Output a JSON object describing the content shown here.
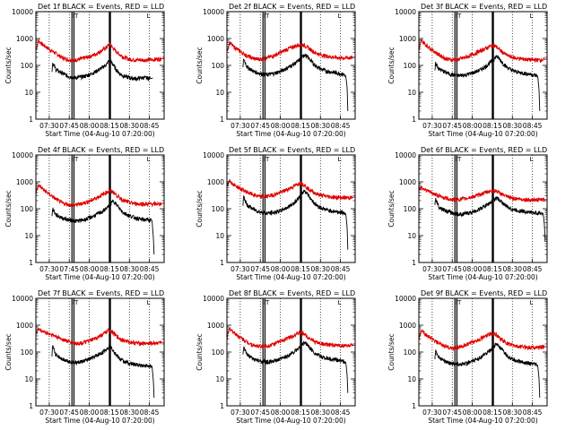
{
  "figure": {
    "xlabel": "Start Time (04-Aug-10 07:20:00)",
    "ylabel": "Counts/sec",
    "panel_title_suffix": " BLACK = Events, RED = LLD",
    "xticks": [
      "07:30",
      "07:45",
      "08:00",
      "08:15",
      "08:30",
      "08:45"
    ],
    "yticks": [
      "1",
      "10",
      "100",
      "1000",
      "10000"
    ]
  },
  "colors": {
    "events": "#000000",
    "lld": "#e00000",
    "background": "#ffffff"
  },
  "chart_data": [
    {
      "type": "line",
      "detector": "Det 1f",
      "title": "Det 1f BLACK = Events, RED = LLD",
      "xlabel": "Start Time (04-Aug-10 07:20:00)",
      "ylabel": "Counts/sec",
      "x_unit": "minutes after 07:20:00",
      "xlim": [
        0,
        96
      ],
      "ylim": [
        1,
        10000
      ],
      "ylog": true,
      "series": [
        {
          "name": "RED = LLD",
          "x": [
            0,
            2,
            5,
            10,
            15,
            20,
            25,
            30,
            35,
            40,
            45,
            50,
            53,
            55,
            58,
            60,
            63,
            66,
            70,
            75,
            80,
            85,
            90,
            96
          ],
          "values": [
            380,
            820,
            600,
            400,
            280,
            190,
            160,
            160,
            180,
            210,
            270,
            380,
            480,
            620,
            430,
            330,
            250,
            200,
            170,
            160,
            160,
            160,
            170,
            180
          ]
        },
        {
          "name": "BLACK = Events",
          "x": [
            12,
            12.5,
            15,
            20,
            25,
            30,
            35,
            40,
            45,
            50,
            53,
            55,
            58,
            60,
            63,
            66,
            70,
            75,
            80,
            83,
            86,
            87,
            87.5
          ],
          "values": [
            55,
            130,
            70,
            50,
            38,
            35,
            38,
            45,
            60,
            85,
            110,
            160,
            105,
            70,
            48,
            40,
            35,
            32,
            35,
            34,
            33,
            33,
            34
          ]
        }
      ]
    },
    {
      "type": "line",
      "detector": "Det 2f",
      "title": "Det 2f BLACK = Events, RED = LLD",
      "xlabel": "Start Time (04-Aug-10 07:20:00)",
      "ylabel": "Counts/sec",
      "x_unit": "minutes after 07:20:00",
      "xlim": [
        0,
        96
      ],
      "ylim": [
        1,
        10000
      ],
      "ylog": true,
      "series": [
        {
          "name": "RED = LLD",
          "x": [
            0,
            2,
            5,
            10,
            15,
            20,
            25,
            30,
            35,
            40,
            45,
            50,
            55,
            58,
            60,
            63,
            66,
            70,
            75,
            80,
            85,
            90,
            96
          ],
          "values": [
            350,
            700,
            500,
            330,
            230,
            180,
            170,
            190,
            230,
            300,
            400,
            500,
            620,
            560,
            480,
            380,
            300,
            250,
            220,
            200,
            190,
            190,
            200
          ]
        },
        {
          "name": "BLACK = Events",
          "x": [
            12,
            12.5,
            15,
            20,
            25,
            30,
            35,
            40,
            45,
            50,
            55,
            58,
            60,
            63,
            66,
            70,
            75,
            80,
            85,
            88,
            89,
            90,
            90.5
          ],
          "values": [
            80,
            180,
            90,
            60,
            50,
            45,
            50,
            60,
            80,
            110,
            170,
            260,
            210,
            150,
            100,
            75,
            60,
            55,
            50,
            45,
            40,
            15,
            2
          ]
        }
      ]
    },
    {
      "type": "line",
      "detector": "Det 3f",
      "title": "Det 3f BLACK = Events, RED = LLD",
      "xlabel": "Start Time (04-Aug-10 07:20:00)",
      "ylabel": "Counts/sec",
      "x_unit": "minutes after 07:20:00",
      "xlim": [
        0,
        96
      ],
      "ylim": [
        1,
        10000
      ],
      "ylog": true,
      "series": [
        {
          "name": "RED = LLD",
          "x": [
            0,
            2,
            5,
            10,
            15,
            20,
            25,
            30,
            35,
            40,
            45,
            50,
            55,
            58,
            60,
            63,
            66,
            70,
            75,
            80,
            85,
            90,
            96
          ],
          "values": [
            380,
            850,
            600,
            380,
            250,
            180,
            160,
            170,
            200,
            250,
            330,
            430,
            560,
            500,
            400,
            300,
            240,
            200,
            180,
            170,
            160,
            160,
            170
          ]
        },
        {
          "name": "BLACK = Events",
          "x": [
            12,
            12.5,
            15,
            20,
            25,
            30,
            35,
            40,
            45,
            50,
            55,
            58,
            60,
            63,
            66,
            70,
            75,
            80,
            85,
            88,
            89,
            90,
            90.5
          ],
          "values": [
            60,
            120,
            75,
            55,
            45,
            42,
            45,
            52,
            65,
            90,
            150,
            220,
            180,
            120,
            85,
            65,
            55,
            50,
            45,
            42,
            40,
            12,
            2
          ]
        }
      ]
    },
    {
      "type": "line",
      "detector": "Det 4f",
      "title": "Det 4f BLACK = Events, RED = LLD",
      "xlabel": "Start Time (04-Aug-10 07:20:00)",
      "ylabel": "Counts/sec",
      "x_unit": "minutes after 07:20:00",
      "xlim": [
        0,
        96
      ],
      "ylim": [
        1,
        10000
      ],
      "ylog": true,
      "series": [
        {
          "name": "RED = LLD",
          "x": [
            0,
            2,
            5,
            10,
            15,
            20,
            25,
            30,
            35,
            40,
            45,
            50,
            55,
            58,
            60,
            63,
            66,
            70,
            75,
            80,
            85,
            90,
            96
          ],
          "values": [
            380,
            780,
            550,
            350,
            230,
            160,
            140,
            140,
            160,
            190,
            250,
            340,
            470,
            420,
            330,
            250,
            200,
            170,
            155,
            150,
            150,
            150,
            160
          ]
        },
        {
          "name": "BLACK = Events",
          "x": [
            12,
            12.5,
            15,
            20,
            25,
            30,
            35,
            40,
            45,
            50,
            55,
            58,
            60,
            63,
            66,
            70,
            75,
            80,
            85,
            87,
            88,
            88.5
          ],
          "values": [
            50,
            100,
            60,
            45,
            38,
            35,
            38,
            45,
            60,
            80,
            130,
            200,
            150,
            95,
            70,
            55,
            45,
            40,
            38,
            36,
            8,
            2
          ]
        }
      ]
    },
    {
      "type": "line",
      "detector": "Det 5f",
      "title": "Det 5f BLACK = Events, RED = LLD",
      "xlabel": "Start Time (04-Aug-10 07:20:00)",
      "ylabel": "Counts/sec",
      "x_unit": "minutes after 07:20:00",
      "xlim": [
        0,
        96
      ],
      "ylim": [
        1,
        10000
      ],
      "ylog": true,
      "series": [
        {
          "name": "RED = LLD",
          "x": [
            0,
            2,
            5,
            10,
            15,
            20,
            25,
            30,
            35,
            40,
            45,
            50,
            55,
            58,
            60,
            63,
            66,
            70,
            75,
            80,
            85,
            90,
            96
          ],
          "values": [
            700,
            1100,
            800,
            560,
            420,
            330,
            280,
            290,
            330,
            400,
            520,
            680,
            950,
            780,
            600,
            470,
            380,
            320,
            290,
            270,
            260,
            260,
            270
          ]
        },
        {
          "name": "BLACK = Events",
          "x": [
            12,
            12.5,
            15,
            20,
            25,
            30,
            35,
            40,
            45,
            50,
            55,
            58,
            60,
            63,
            66,
            70,
            75,
            80,
            85,
            88,
            89,
            90,
            90.5
          ],
          "values": [
            130,
            280,
            140,
            95,
            75,
            68,
            72,
            85,
            110,
            160,
            300,
            480,
            380,
            230,
            150,
            110,
            90,
            80,
            75,
            70,
            65,
            20,
            3
          ]
        }
      ]
    },
    {
      "type": "line",
      "detector": "Det 6f",
      "title": "Det 6f BLACK = Events, RED = LLD",
      "xlabel": "Start Time (04-Aug-10 07:20:00)",
      "ylabel": "Counts/sec",
      "x_unit": "minutes after 07:20:00",
      "xlim": [
        0,
        96
      ],
      "ylim": [
        1,
        10000
      ],
      "ylog": true,
      "series": [
        {
          "name": "RED = LLD",
          "x": [
            0,
            2,
            5,
            10,
            15,
            20,
            25,
            30,
            35,
            40,
            45,
            50,
            55,
            58,
            60,
            63,
            66,
            70,
            75,
            80,
            85,
            90,
            96
          ],
          "values": [
            520,
            650,
            500,
            380,
            300,
            250,
            220,
            220,
            240,
            280,
            330,
            400,
            480,
            460,
            400,
            330,
            280,
            250,
            230,
            220,
            215,
            215,
            220
          ]
        },
        {
          "name": "BLACK = Events",
          "x": [
            12,
            12.5,
            15,
            20,
            25,
            30,
            35,
            40,
            45,
            50,
            55,
            58,
            60,
            63,
            66,
            70,
            75,
            80,
            85,
            90,
            93,
            94,
            94.5
          ],
          "values": [
            120,
            250,
            120,
            85,
            70,
            62,
            65,
            75,
            95,
            130,
            190,
            250,
            220,
            160,
            120,
            95,
            85,
            78,
            72,
            70,
            68,
            25,
            6
          ]
        }
      ]
    },
    {
      "type": "line",
      "detector": "Det 7f",
      "title": "Det 7f BLACK = Events, RED = LLD",
      "xlabel": "Start Time (04-Aug-10 07:20:00)",
      "ylabel": "Counts/sec",
      "x_unit": "minutes after 07:20:00",
      "xlim": [
        0,
        96
      ],
      "ylim": [
        1,
        10000
      ],
      "ylog": true,
      "series": [
        {
          "name": "RED = LLD",
          "x": [
            0,
            2,
            5,
            10,
            15,
            20,
            25,
            30,
            35,
            40,
            45,
            50,
            53,
            55,
            58,
            60,
            63,
            66,
            70,
            75,
            80,
            85,
            90,
            96
          ],
          "values": [
            500,
            700,
            600,
            480,
            380,
            300,
            240,
            210,
            220,
            260,
            330,
            450,
            560,
            680,
            520,
            400,
            320,
            270,
            240,
            220,
            210,
            210,
            220,
            230
          ]
        },
        {
          "name": "BLACK = Events",
          "x": [
            12,
            12.5,
            15,
            20,
            25,
            30,
            35,
            40,
            45,
            50,
            53,
            55,
            58,
            60,
            63,
            66,
            70,
            75,
            80,
            84,
            87,
            88,
            88.5
          ],
          "values": [
            60,
            160,
            80,
            55,
            45,
            40,
            45,
            55,
            70,
            100,
            130,
            170,
            120,
            80,
            55,
            45,
            38,
            34,
            32,
            30,
            30,
            8,
            2
          ]
        }
      ]
    },
    {
      "type": "line",
      "detector": "Det 8f",
      "title": "Det 8f BLACK = Events, RED = LLD",
      "xlabel": "Start Time (04-Aug-10 07:20:00)",
      "ylabel": "Counts/sec",
      "x_unit": "minutes after 07:20:00",
      "xlim": [
        0,
        96
      ],
      "ylim": [
        1,
        10000
      ],
      "ylog": true,
      "series": [
        {
          "name": "RED = LLD",
          "x": [
            0,
            2,
            5,
            10,
            15,
            20,
            25,
            30,
            35,
            40,
            45,
            50,
            55,
            58,
            60,
            63,
            66,
            70,
            75,
            80,
            85,
            90,
            96
          ],
          "values": [
            350,
            750,
            550,
            350,
            240,
            180,
            160,
            170,
            200,
            250,
            320,
            420,
            550,
            480,
            380,
            300,
            240,
            210,
            190,
            180,
            175,
            175,
            180
          ]
        },
        {
          "name": "BLACK = Events",
          "x": [
            12,
            12.5,
            15,
            20,
            25,
            30,
            35,
            40,
            45,
            50,
            55,
            58,
            60,
            63,
            66,
            70,
            75,
            80,
            85,
            88,
            89,
            90,
            90.5
          ],
          "values": [
            70,
            150,
            80,
            55,
            45,
            42,
            45,
            55,
            70,
            100,
            160,
            230,
            190,
            130,
            90,
            70,
            58,
            52,
            48,
            45,
            42,
            14,
            3
          ]
        }
      ]
    },
    {
      "type": "line",
      "detector": "Det 9f",
      "title": "Det 9f BLACK = Events, RED = LLD",
      "xlabel": "Start Time (04-Aug-10 07:20:00)",
      "ylabel": "Counts/sec",
      "x_unit": "minutes after 07:20:00",
      "xlim": [
        0,
        96
      ],
      "ylim": [
        1,
        10000
      ],
      "ylog": true,
      "series": [
        {
          "name": "RED = LLD",
          "x": [
            0,
            2,
            5,
            10,
            15,
            20,
            25,
            30,
            35,
            40,
            45,
            50,
            55,
            58,
            60,
            63,
            66,
            70,
            75,
            80,
            85,
            90,
            96
          ],
          "values": [
            300,
            650,
            450,
            300,
            210,
            160,
            140,
            150,
            180,
            230,
            300,
            390,
            520,
            450,
            350,
            270,
            210,
            180,
            160,
            155,
            150,
            150,
            160
          ]
        },
        {
          "name": "BLACK = Events",
          "x": [
            12,
            12.5,
            15,
            20,
            25,
            30,
            35,
            40,
            45,
            50,
            55,
            58,
            60,
            63,
            66,
            70,
            75,
            80,
            85,
            88,
            89,
            90,
            90.5
          ],
          "values": [
            55,
            110,
            65,
            45,
            38,
            35,
            38,
            45,
            60,
            85,
            140,
            200,
            160,
            110,
            75,
            55,
            45,
            40,
            36,
            34,
            32,
            10,
            2
          ]
        }
      ]
    }
  ]
}
